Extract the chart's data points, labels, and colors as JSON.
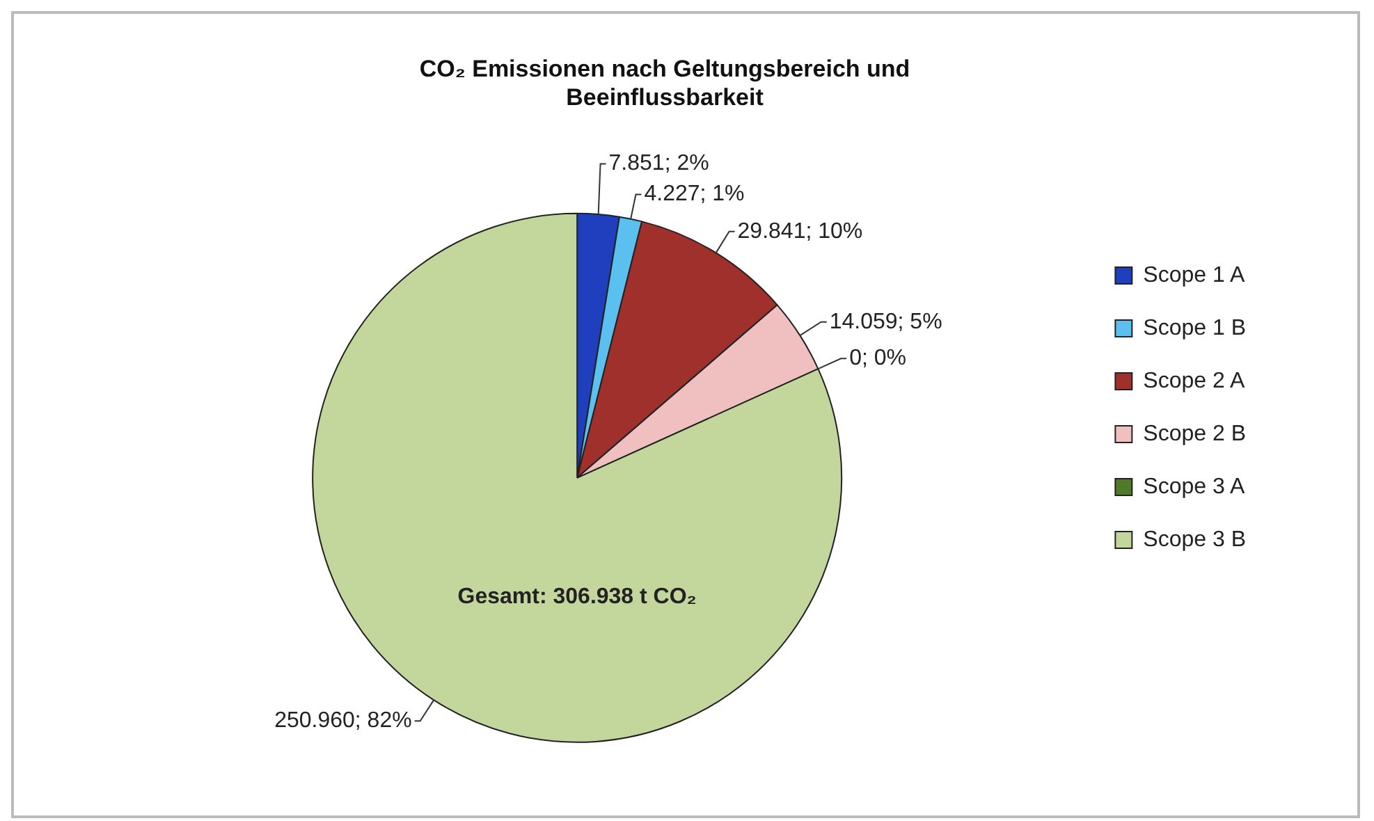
{
  "chart_data": {
    "type": "pie",
    "title": "CO₂ Emissionen nach Geltungsbereich und Beeinflussbarkeit",
    "categories": [
      "Scope 1 A",
      "Scope 1 B",
      "Scope 2 A",
      "Scope 2 B",
      "Scope 3 A",
      "Scope 3 B"
    ],
    "values": [
      7851,
      4227,
      29841,
      14059,
      0,
      250960
    ],
    "colors": [
      "#1f3fbf",
      "#5bc0ef",
      "#a0302c",
      "#f0c0c0",
      "#4f7a28",
      "#c3d69b"
    ],
    "value_labels": [
      "7.851; 2%",
      "4.227; 1%",
      "29.841; 10%",
      "14.059; 5%",
      "0; 0%",
      "250.960; 82%"
    ],
    "annotations": [
      "Gesamt: 306.938 t CO₂"
    ],
    "legend": "right"
  }
}
